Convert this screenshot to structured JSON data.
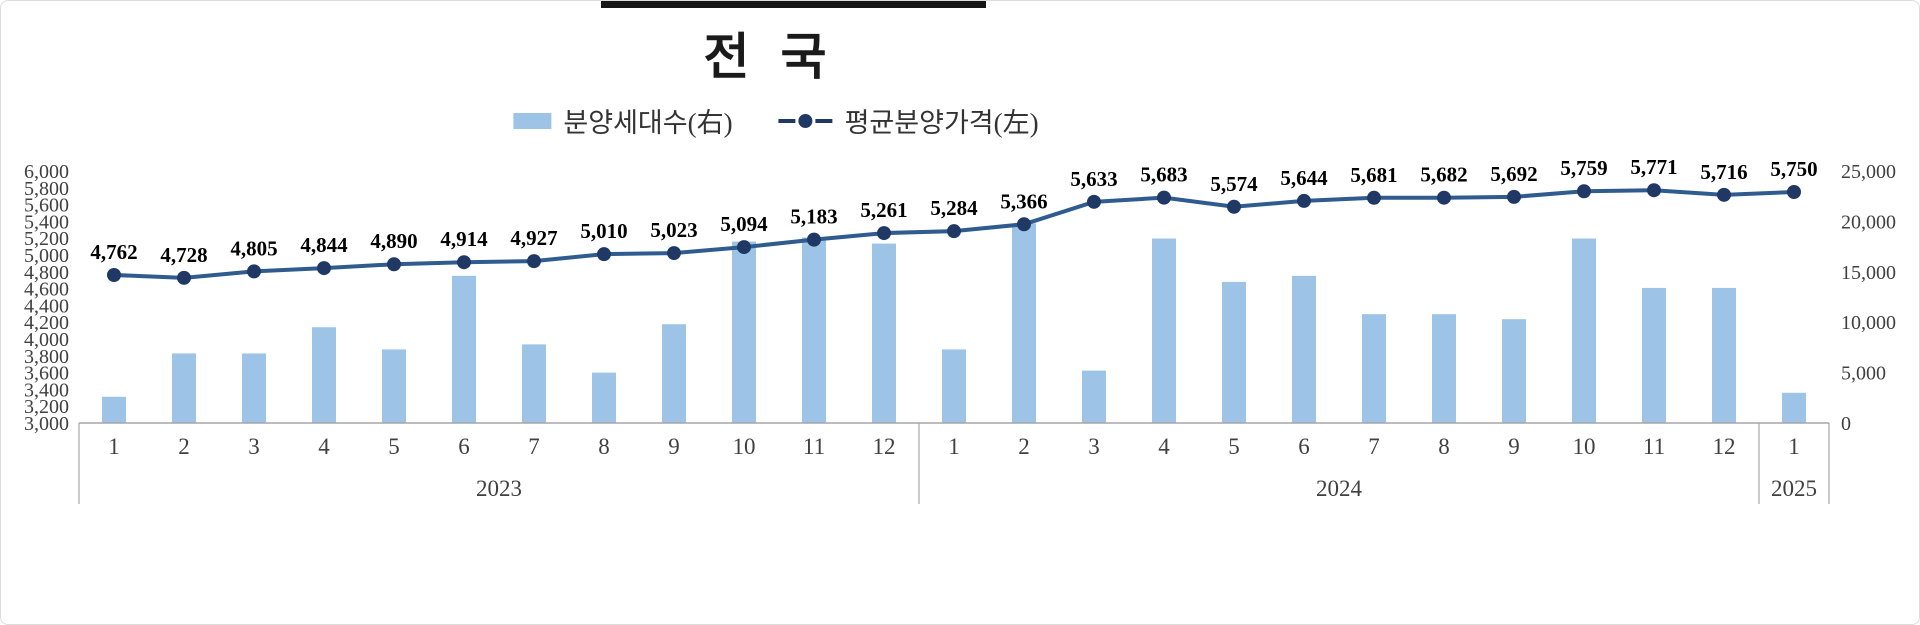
{
  "title": "전  국",
  "legend": {
    "bar_label": "분양세대수(右)",
    "line_label": "평균분양가격(左)"
  },
  "colors": {
    "bar": "#9DC3E6",
    "line": "#2F5B8F",
    "marker": "#1F3864",
    "axis_line": "#A6A6A6",
    "tick_text": "#404040",
    "label_text": "#000000"
  },
  "chart_data": {
    "type": "bar+line",
    "title": "전  국",
    "legend_position": "top",
    "grid": "off",
    "x_months": [
      "1",
      "2",
      "3",
      "4",
      "5",
      "6",
      "7",
      "8",
      "9",
      "10",
      "11",
      "12",
      "1",
      "2",
      "3",
      "4",
      "5",
      "6",
      "7",
      "8",
      "9",
      "10",
      "11",
      "12",
      "1"
    ],
    "year_groups": [
      {
        "label": "2023",
        "count": 12
      },
      {
        "label": "2024",
        "count": 12
      },
      {
        "label": "2025",
        "count": 1
      }
    ],
    "series": [
      {
        "name": "분양세대수(右)",
        "type": "bar",
        "axis": "right",
        "values": [
          2600,
          6900,
          6900,
          9500,
          7300,
          14600,
          7800,
          5000,
          9800,
          18000,
          18400,
          17800,
          7300,
          19800,
          5200,
          18300,
          14000,
          14600,
          10800,
          10800,
          10300,
          18300,
          13400,
          13400,
          3000
        ]
      },
      {
        "name": "평균분양가격(左)",
        "type": "line",
        "axis": "left",
        "values": [
          4762,
          4728,
          4805,
          4844,
          4890,
          4914,
          4927,
          5010,
          5023,
          5094,
          5183,
          5261,
          5284,
          5366,
          5633,
          5683,
          5574,
          5644,
          5681,
          5682,
          5692,
          5759,
          5771,
          5716,
          5750
        ],
        "labels": [
          "4,762",
          "4,728",
          "4,805",
          "4,844",
          "4,890",
          "4,914",
          "4,927",
          "5,010",
          "5,023",
          "5,094",
          "5,183",
          "5,261",
          "5,284",
          "5,366",
          "5,633",
          "5,683",
          "5,574",
          "5,644",
          "5,681",
          "5,682",
          "5,692",
          "5,759",
          "5,771",
          "5,716",
          "5,750"
        ]
      }
    ],
    "left_axis": {
      "min": 3000,
      "max": 6000,
      "step": 200,
      "ticks": [
        "6,000",
        "5,800",
        "5,600",
        "5,400",
        "5,200",
        "5,000",
        "4,800",
        "4,600",
        "4,400",
        "4,200",
        "4,000",
        "3,800",
        "3,600",
        "3,400",
        "3,200",
        "3,000"
      ]
    },
    "right_axis": {
      "min": 0,
      "max": 25000,
      "step": 5000,
      "ticks": [
        "25,000",
        "20,000",
        "15,000",
        "10,000",
        "5,000",
        "0"
      ]
    }
  }
}
